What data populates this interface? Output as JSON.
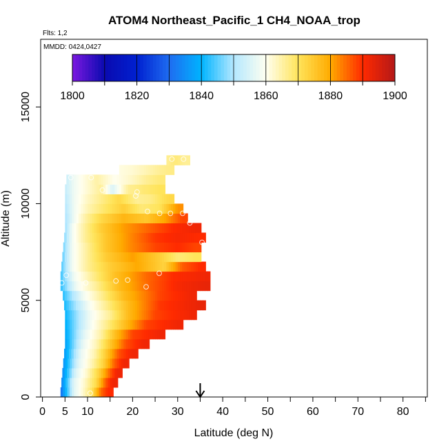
{
  "chart_data": {
    "type": "heatmap",
    "title": "ATOM4 Northeast_Pacific_1 CH4_NOAA_trop",
    "flights_note": "Flts: 1,2",
    "mmdd_note": "MMDD: 0424,0427",
    "xlabel": "Latitude (deg N)",
    "ylabel": "Altitude (m)",
    "xlim": [
      -0.4,
      85.4
    ],
    "ylim": [
      0,
      18500
    ],
    "x_ticks": [
      0,
      5,
      10,
      20,
      30,
      40,
      50,
      60,
      70,
      80
    ],
    "x_tick_labels": [
      "0",
      "5",
      "10",
      "20",
      "30",
      "40",
      "50",
      "60",
      "70",
      "80"
    ],
    "x_minor_ticks": [
      15,
      25,
      35,
      45,
      55,
      65,
      75,
      85
    ],
    "y_ticks": [
      0,
      5000,
      10000,
      15000
    ],
    "y_tick_labels": [
      "0",
      "5000",
      "10000",
      "15000"
    ],
    "colorbar": {
      "min": 1800,
      "max": 1900,
      "tick_values": [
        1800,
        1820,
        1840,
        1860,
        1880,
        1900
      ],
      "tick_labels": [
        "1800",
        "1820",
        "1840",
        "1860",
        "1880",
        "1900"
      ],
      "colors": [
        "#7B18E0",
        "#0A0AB0",
        "#0020D0",
        "#1E6CF0",
        "#00B4FF",
        "#B4E8FF",
        "#FFFFF0",
        "#FFE45A",
        "#FFAA00",
        "#FF2A00",
        "#B41818"
      ]
    },
    "marker_longitude": 35,
    "layers": [
      {
        "alt": [
          0,
          500
        ],
        "from": 4.0,
        "segs": [
          [
            4,
            1830
          ],
          [
            7,
            1856
          ],
          [
            9,
            1862
          ],
          [
            11,
            1870
          ],
          [
            13,
            1885
          ],
          [
            14.5,
            1890
          ]
        ]
      },
      {
        "alt": [
          500,
          1000
        ],
        "from": 4.2,
        "segs": [
          [
            4.2,
            1833
          ],
          [
            7,
            1856
          ],
          [
            9.5,
            1863
          ],
          [
            12,
            1872
          ],
          [
            14,
            1886
          ],
          [
            15.5,
            1892
          ]
        ]
      },
      {
        "alt": [
          1000,
          1500
        ],
        "from": 4.4,
        "segs": [
          [
            4.4,
            1834
          ],
          [
            7.5,
            1856
          ],
          [
            10,
            1863
          ],
          [
            12.5,
            1873
          ],
          [
            15,
            1886
          ],
          [
            16.5,
            1892
          ]
        ]
      },
      {
        "alt": [
          1500,
          2000
        ],
        "from": 4.6,
        "segs": [
          [
            4.6,
            1835
          ],
          [
            8,
            1856
          ],
          [
            11,
            1864
          ],
          [
            13.5,
            1873
          ],
          [
            16,
            1886
          ],
          [
            18,
            1892
          ]
        ]
      },
      {
        "alt": [
          2000,
          2500
        ],
        "from": 4.8,
        "segs": [
          [
            4.8,
            1836
          ],
          [
            8.5,
            1857
          ],
          [
            11.5,
            1864
          ],
          [
            14,
            1874
          ],
          [
            17,
            1887
          ],
          [
            20,
            1892
          ]
        ]
      },
      {
        "alt": [
          2500,
          3000
        ],
        "from": 5.0,
        "segs": [
          [
            5,
            1837
          ],
          [
            9,
            1857
          ],
          [
            12,
            1864
          ],
          [
            15,
            1875
          ],
          [
            18.5,
            1887
          ],
          [
            22.5,
            1892
          ]
        ]
      },
      {
        "alt": [
          3000,
          3500
        ],
        "from": 5.0,
        "segs": [
          [
            5,
            1838
          ],
          [
            9.5,
            1857
          ],
          [
            13,
            1865
          ],
          [
            16,
            1876
          ],
          [
            20,
            1888
          ],
          [
            26,
            1892
          ]
        ]
      },
      {
        "alt": [
          3500,
          4000
        ],
        "from": 5.0,
        "segs": [
          [
            5,
            1839
          ],
          [
            10,
            1857
          ],
          [
            14,
            1866
          ],
          [
            18,
            1876
          ],
          [
            23,
            1888
          ],
          [
            30,
            1892
          ]
        ]
      },
      {
        "alt": [
          4000,
          4500
        ],
        "from": 5.0,
        "segs": [
          [
            5,
            1840
          ],
          [
            10.5,
            1858
          ],
          [
            15,
            1866
          ],
          [
            19,
            1877
          ],
          [
            25,
            1888
          ],
          [
            33,
            1892
          ]
        ]
      },
      {
        "alt": [
          4500,
          5000
        ],
        "from": 4.8,
        "segs": [
          [
            4.8,
            1841
          ],
          [
            10,
            1858
          ],
          [
            14,
            1866
          ],
          [
            19,
            1877
          ],
          [
            26,
            1889
          ],
          [
            35,
            1893
          ]
        ]
      },
      {
        "alt": [
          5000,
          5500
        ],
        "from": 4.5,
        "segs": [
          [
            4.5,
            1842
          ],
          [
            9,
            1858
          ],
          [
            13,
            1866
          ],
          [
            18,
            1877
          ],
          [
            26,
            1888
          ],
          [
            33,
            1892
          ]
        ]
      },
      {
        "alt": [
          5500,
          6000
        ],
        "from": 4.0,
        "segs": [
          [
            4,
            1842
          ],
          [
            7.5,
            1858
          ],
          [
            12,
            1866
          ],
          [
            17,
            1877
          ],
          [
            24,
            1886
          ],
          [
            30,
            1891
          ],
          [
            36,
            1893
          ]
        ]
      },
      {
        "alt": [
          6000,
          6500
        ],
        "from": 4.0,
        "segs": [
          [
            4,
            1843
          ],
          [
            7,
            1858
          ],
          [
            11,
            1866
          ],
          [
            16,
            1876
          ],
          [
            23,
            1885
          ],
          [
            29,
            1890
          ],
          [
            36,
            1892
          ]
        ]
      },
      {
        "alt": [
          6500,
          7000
        ],
        "from": 4.2,
        "segs": [
          [
            4.2,
            1844
          ],
          [
            6.5,
            1858
          ],
          [
            10,
            1866
          ],
          [
            15,
            1874
          ],
          [
            21,
            1880
          ],
          [
            27,
            1873
          ],
          [
            31,
            1886
          ],
          [
            35,
            1890
          ]
        ]
      },
      {
        "alt": [
          7000,
          7500
        ],
        "from": 4.4,
        "segs": [
          [
            4.4,
            1845
          ],
          [
            6.5,
            1858
          ],
          [
            10,
            1866
          ],
          [
            14,
            1874
          ],
          [
            20,
            1881
          ],
          [
            26,
            1874
          ],
          [
            30,
            1868
          ],
          [
            34,
            1870
          ]
        ]
      },
      {
        "alt": [
          7500,
          8000
        ],
        "from": 4.6,
        "segs": [
          [
            4.6,
            1846
          ],
          [
            6.5,
            1858
          ],
          [
            10,
            1866
          ],
          [
            14,
            1875
          ],
          [
            19,
            1882
          ],
          [
            25,
            1888
          ],
          [
            30,
            1890
          ],
          [
            34,
            1888
          ]
        ]
      },
      {
        "alt": [
          8000,
          8500
        ],
        "from": 4.8,
        "segs": [
          [
            4.8,
            1847
          ],
          [
            6.5,
            1858
          ],
          [
            9.5,
            1866
          ],
          [
            14,
            1875
          ],
          [
            19,
            1882
          ],
          [
            25,
            1889
          ],
          [
            30,
            1891
          ],
          [
            35,
            1890
          ]
        ]
      },
      {
        "alt": [
          8500,
          9000
        ],
        "from": 5.0,
        "segs": [
          [
            5,
            1848
          ],
          [
            6.5,
            1858
          ],
          [
            9.5,
            1866
          ],
          [
            13,
            1874
          ],
          [
            18,
            1881
          ],
          [
            24,
            1886
          ],
          [
            29,
            1890
          ],
          [
            34,
            1892
          ]
        ]
      },
      {
        "alt": [
          9000,
          9500
        ],
        "from": 5.0,
        "segs": [
          [
            5,
            1849
          ],
          [
            7,
            1858
          ],
          [
            9.5,
            1865
          ],
          [
            13,
            1872
          ],
          [
            18,
            1878
          ],
          [
            23,
            1875
          ],
          [
            27,
            1880
          ],
          [
            31,
            1888
          ]
        ]
      },
      {
        "alt": [
          9500,
          10000
        ],
        "from": 5.0,
        "segs": [
          [
            5,
            1850
          ],
          [
            7,
            1858
          ],
          [
            10,
            1864
          ],
          [
            13,
            1868
          ],
          [
            18,
            1874
          ],
          [
            22,
            1868
          ],
          [
            26,
            1870
          ],
          [
            30,
            1882
          ]
        ]
      },
      {
        "alt": [
          10000,
          10500
        ],
        "from": 5.0,
        "segs": [
          [
            5,
            1851
          ],
          [
            7,
            1858
          ],
          [
            10,
            1863
          ],
          [
            14,
            1868
          ],
          [
            17,
            1872
          ],
          [
            21,
            1866
          ],
          [
            24,
            1867
          ],
          [
            28,
            1872
          ]
        ]
      },
      {
        "alt": [
          10500,
          11000
        ],
        "from": 5.0,
        "segs": [
          [
            5,
            1852
          ],
          [
            7,
            1858
          ],
          [
            10,
            1862
          ],
          [
            13,
            1866
          ],
          [
            15.5,
            1855
          ],
          [
            19,
            1866
          ],
          [
            22,
            1868
          ],
          [
            26,
            1870
          ]
        ]
      },
      {
        "alt": [
          11000,
          11500
        ],
        "from": 5.3,
        "segs": [
          [
            5.3,
            1853
          ],
          [
            7,
            1858
          ],
          [
            10,
            1862
          ],
          [
            12,
            1865
          ],
          [
            16,
            1860
          ],
          [
            20,
            1863
          ],
          [
            23,
            1866
          ],
          [
            26,
            1868
          ]
        ]
      },
      {
        "alt": [
          11500,
          12000
        ],
        "from": 17.0,
        "segs": [
          [
            17,
            1861
          ],
          [
            20,
            1862
          ],
          [
            23,
            1864
          ],
          [
            26,
            1866
          ],
          [
            28,
            1867
          ]
        ]
      },
      {
        "alt": [
          12000,
          12500
        ],
        "from": 27.5,
        "segs": [
          [
            27.5,
            1866
          ],
          [
            29.5,
            1868
          ],
          [
            31.5,
            1866
          ]
        ]
      }
    ],
    "points": [
      [
        4.3,
        5900
      ],
      [
        5.3,
        6300
      ],
      [
        6.3,
        11350
      ],
      [
        9.6,
        5900
      ],
      [
        10.8,
        11350
      ],
      [
        13.3,
        10700
      ],
      [
        16.3,
        6000
      ],
      [
        18.9,
        6050
      ],
      [
        20.7,
        10400
      ],
      [
        21.0,
        10600
      ],
      [
        23.0,
        5700
      ],
      [
        23.3,
        9600
      ],
      [
        25.9,
        6400
      ],
      [
        26.0,
        9500
      ],
      [
        28.4,
        9500
      ],
      [
        28.7,
        12300
      ],
      [
        31.1,
        9500
      ],
      [
        31.3,
        12300
      ],
      [
        32.7,
        9000
      ],
      [
        35.4,
        8000
      ],
      [
        36.9,
        8700
      ],
      [
        37.3,
        4600
      ],
      [
        38.2,
        5500
      ],
      [
        10.6,
        200
      ]
    ]
  }
}
